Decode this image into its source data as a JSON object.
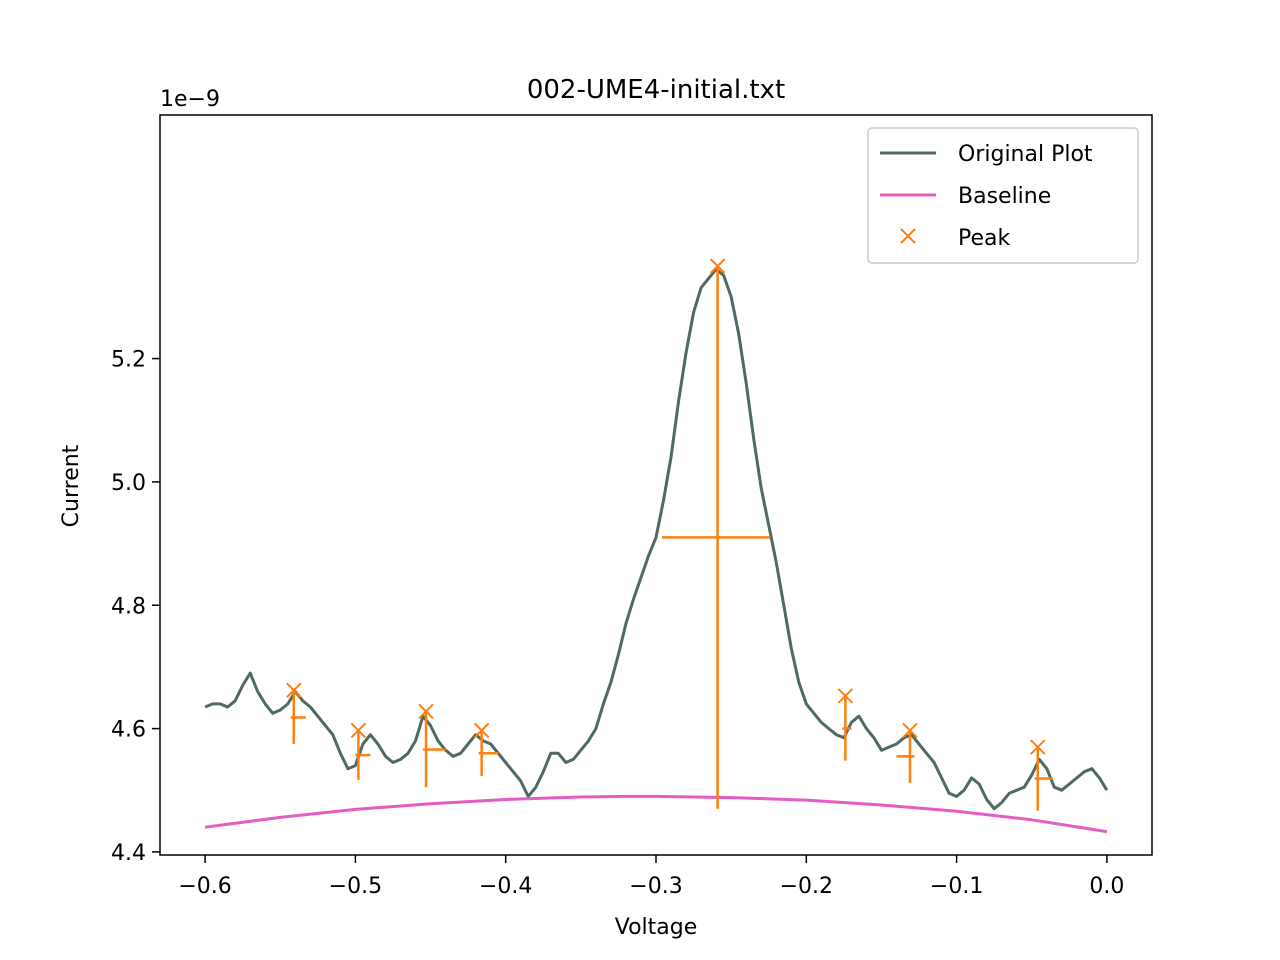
{
  "chart_data": {
    "type": "line",
    "title": "002-UME4-initial.txt",
    "xlabel": "Voltage",
    "ylabel": "Current",
    "y_multiplier": "1e−9",
    "xlim": [
      -0.63,
      0.03
    ],
    "ylim": [
      4.395,
      5.595
    ],
    "x_ticks": [
      -0.6,
      -0.5,
      -0.4,
      -0.3,
      -0.2,
      -0.1,
      0.0
    ],
    "x_tick_labels": [
      "−0.6",
      "−0.5",
      "−0.4",
      "−0.3",
      "−0.2",
      "−0.1",
      "0.0"
    ],
    "y_ticks": [
      4.4,
      4.6,
      4.8,
      5.0,
      5.2
    ],
    "y_tick_labels": [
      "4.4",
      "4.6",
      "4.8",
      "5.0",
      "5.2"
    ],
    "legend_position": "top-right",
    "colors": {
      "original": "#4f6a5f",
      "baseline": "#e55cc3",
      "peak": "#ff7f0e"
    },
    "series": [
      {
        "name": "Original Plot",
        "role": "original",
        "x": [
          -0.6,
          -0.595,
          -0.59,
          -0.585,
          -0.58,
          -0.575,
          -0.57,
          -0.565,
          -0.56,
          -0.555,
          -0.55,
          -0.545,
          -0.54,
          -0.535,
          -0.53,
          -0.525,
          -0.52,
          -0.515,
          -0.51,
          -0.505,
          -0.5,
          -0.495,
          -0.49,
          -0.485,
          -0.48,
          -0.475,
          -0.47,
          -0.465,
          -0.46,
          -0.455,
          -0.45,
          -0.445,
          -0.44,
          -0.435,
          -0.43,
          -0.425,
          -0.42,
          -0.415,
          -0.41,
          -0.405,
          -0.4,
          -0.395,
          -0.39,
          -0.385,
          -0.38,
          -0.375,
          -0.37,
          -0.365,
          -0.36,
          -0.355,
          -0.35,
          -0.345,
          -0.34,
          -0.335,
          -0.33,
          -0.325,
          -0.32,
          -0.315,
          -0.31,
          -0.305,
          -0.3,
          -0.295,
          -0.29,
          -0.285,
          -0.28,
          -0.275,
          -0.27,
          -0.265,
          -0.26,
          -0.255,
          -0.25,
          -0.245,
          -0.24,
          -0.235,
          -0.23,
          -0.225,
          -0.22,
          -0.215,
          -0.21,
          -0.205,
          -0.2,
          -0.195,
          -0.19,
          -0.185,
          -0.18,
          -0.175,
          -0.17,
          -0.165,
          -0.16,
          -0.155,
          -0.15,
          -0.145,
          -0.14,
          -0.135,
          -0.13,
          -0.125,
          -0.12,
          -0.115,
          -0.11,
          -0.105,
          -0.1,
          -0.095,
          -0.09,
          -0.085,
          -0.08,
          -0.075,
          -0.07,
          -0.065,
          -0.06,
          -0.055,
          -0.05,
          -0.045,
          -0.04,
          -0.035,
          -0.03,
          -0.025,
          -0.02,
          -0.015,
          -0.01,
          -0.005,
          0.0
        ],
        "values": [
          4.635,
          4.64,
          4.64,
          4.635,
          4.645,
          4.67,
          4.69,
          4.66,
          4.64,
          4.625,
          4.63,
          4.64,
          4.66,
          4.645,
          4.635,
          4.62,
          4.605,
          4.59,
          4.56,
          4.535,
          4.54,
          4.575,
          4.59,
          4.575,
          4.555,
          4.545,
          4.55,
          4.56,
          4.58,
          4.62,
          4.605,
          4.58,
          4.565,
          4.555,
          4.56,
          4.575,
          4.59,
          4.58,
          4.575,
          4.56,
          4.545,
          4.53,
          4.515,
          4.49,
          4.505,
          4.53,
          4.56,
          4.56,
          4.545,
          4.55,
          4.565,
          4.58,
          4.6,
          4.64,
          4.675,
          4.72,
          4.77,
          4.81,
          4.845,
          4.88,
          4.91,
          4.97,
          5.04,
          5.13,
          5.21,
          5.275,
          5.315,
          5.33,
          5.345,
          5.335,
          5.3,
          5.24,
          5.16,
          5.07,
          4.99,
          4.93,
          4.87,
          4.8,
          4.73,
          4.675,
          4.64,
          4.625,
          4.61,
          4.6,
          4.59,
          4.585,
          4.61,
          4.62,
          4.6,
          4.585,
          4.565,
          4.57,
          4.575,
          4.585,
          4.59,
          4.575,
          4.56,
          4.545,
          4.52,
          4.495,
          4.49,
          4.5,
          4.52,
          4.51,
          4.485,
          4.47,
          4.48,
          4.495,
          4.5,
          4.505,
          4.525,
          4.55,
          4.535,
          4.505,
          4.5,
          4.51,
          4.52,
          4.53,
          4.535,
          4.52,
          4.5
        ]
      },
      {
        "name": "Baseline",
        "role": "baseline",
        "x": [
          -0.6,
          -0.55,
          -0.5,
          -0.45,
          -0.4,
          -0.35,
          -0.32,
          -0.3,
          -0.25,
          -0.2,
          -0.15,
          -0.1,
          -0.05,
          0.0
        ],
        "values": [
          4.44,
          4.456,
          4.469,
          4.478,
          4.485,
          4.489,
          4.49,
          4.49,
          4.488,
          4.484,
          4.476,
          4.466,
          4.452,
          4.433
        ]
      }
    ],
    "peaks": {
      "name": "Peak",
      "marker": "x",
      "points": [
        {
          "x": -0.541,
          "y": 4.662,
          "base": 4.575,
          "half": 4.618,
          "left": -0.543,
          "right": -0.533
        },
        {
          "x": -0.498,
          "y": 4.597,
          "base": 4.517,
          "half": 4.557,
          "left": -0.5,
          "right": -0.49
        },
        {
          "x": -0.453,
          "y": 4.628,
          "base": 4.505,
          "half": 4.566,
          "left": -0.455,
          "right": -0.44
        },
        {
          "x": -0.416,
          "y": 4.597,
          "base": 4.523,
          "half": 4.56,
          "left": -0.418,
          "right": -0.405
        },
        {
          "x": -0.259,
          "y": 5.35,
          "base": 4.47,
          "half": 4.91,
          "left": -0.296,
          "right": -0.224
        },
        {
          "x": -0.174,
          "y": 4.653,
          "base": 4.548,
          "half": 4.6,
          "left": -0.176,
          "right": -0.17
        },
        {
          "x": -0.131,
          "y": 4.597,
          "base": 4.512,
          "half": 4.555,
          "left": -0.14,
          "right": -0.128
        },
        {
          "x": -0.046,
          "y": 4.57,
          "base": 4.467,
          "half": 4.519,
          "left": -0.048,
          "right": -0.036
        }
      ]
    }
  },
  "legend": {
    "items": [
      {
        "label": "Original Plot"
      },
      {
        "label": "Baseline"
      },
      {
        "label": "Peak"
      }
    ]
  }
}
